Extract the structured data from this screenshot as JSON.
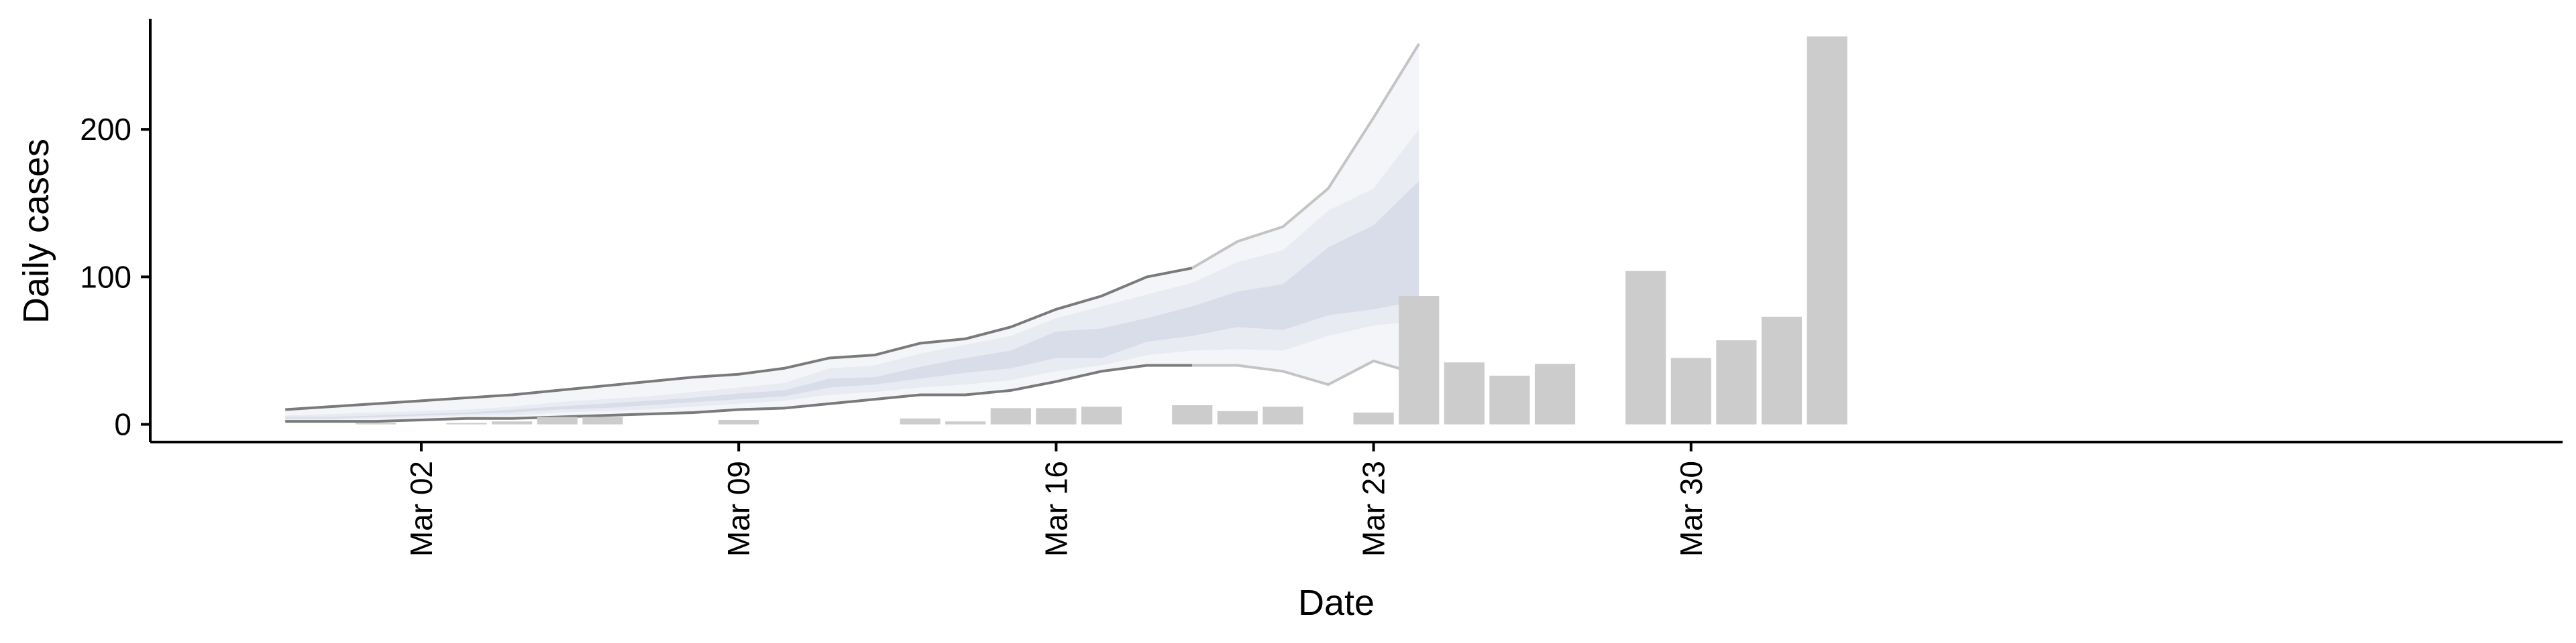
{
  "chart_data": {
    "type": "bar",
    "title": "",
    "xlabel": "Date",
    "ylabel": "Daily cases",
    "x_axis": {
      "type": "date",
      "range": [
        "2020-02-26",
        "2020-04-05"
      ],
      "ticks": [
        {
          "date": "2020-03-02",
          "label": "Mar 02"
        },
        {
          "date": "2020-03-09",
          "label": "Mar 09"
        },
        {
          "date": "2020-03-16",
          "label": "Mar 16"
        },
        {
          "date": "2020-03-23",
          "label": "Mar 23"
        },
        {
          "date": "2020-03-30",
          "label": "Mar 30"
        }
      ]
    },
    "y_axis": {
      "range": [
        -12,
        275
      ],
      "ticks": [
        0,
        100,
        200
      ]
    },
    "grid": false,
    "legend": "none",
    "colors": {
      "bars": "#cccccc",
      "band_outer": "#f4f5f8",
      "band_mid": "#e9ebf2",
      "band_inner": "#d9dce9",
      "band_line_dark": "#7a7a7a",
      "band_line_light": "#c4c4c4",
      "axis": "#000000"
    },
    "bars": [
      {
        "date": "2020-03-01",
        "value": 1
      },
      {
        "date": "2020-03-03",
        "value": 1
      },
      {
        "date": "2020-03-04",
        "value": 2
      },
      {
        "date": "2020-03-05",
        "value": 5
      },
      {
        "date": "2020-03-06",
        "value": 5
      },
      {
        "date": "2020-03-09",
        "value": 3
      },
      {
        "date": "2020-03-13",
        "value": 4
      },
      {
        "date": "2020-03-14",
        "value": 2
      },
      {
        "date": "2020-03-15",
        "value": 11
      },
      {
        "date": "2020-03-16",
        "value": 11
      },
      {
        "date": "2020-03-17",
        "value": 12
      },
      {
        "date": "2020-03-19",
        "value": 13
      },
      {
        "date": "2020-03-20",
        "value": 9
      },
      {
        "date": "2020-03-21",
        "value": 12
      },
      {
        "date": "2020-03-23",
        "value": 8
      },
      {
        "date": "2020-03-24",
        "value": 87
      },
      {
        "date": "2020-03-25",
        "value": 42
      },
      {
        "date": "2020-03-26",
        "value": 33
      },
      {
        "date": "2020-03-27",
        "value": 41
      },
      {
        "date": "2020-03-29",
        "value": 104
      },
      {
        "date": "2020-03-30",
        "value": 45
      },
      {
        "date": "2020-03-31",
        "value": 57
      },
      {
        "date": "2020-04-01",
        "value": 73
      },
      {
        "date": "2020-04-02",
        "value": 263
      }
    ],
    "band": {
      "dates": [
        "2020-02-28",
        "2020-02-29",
        "2020-03-01",
        "2020-03-02",
        "2020-03-03",
        "2020-03-04",
        "2020-03-05",
        "2020-03-06",
        "2020-03-07",
        "2020-03-08",
        "2020-03-09",
        "2020-03-10",
        "2020-03-11",
        "2020-03-12",
        "2020-03-13",
        "2020-03-14",
        "2020-03-15",
        "2020-03-16",
        "2020-03-17",
        "2020-03-18",
        "2020-03-19",
        "2020-03-20",
        "2020-03-21",
        "2020-03-22",
        "2020-03-23",
        "2020-03-24"
      ],
      "lower_90": [
        2,
        2,
        2,
        3,
        4,
        4,
        5,
        6,
        7,
        8,
        10,
        11,
        14,
        17,
        20,
        20,
        23,
        29,
        36,
        40,
        40,
        40,
        36,
        27,
        43,
        34
      ],
      "lower_50": [
        3,
        3,
        4,
        5,
        6,
        6,
        8,
        9,
        10,
        12,
        14,
        16,
        20,
        22,
        25,
        27,
        30,
        36,
        40,
        47,
        50,
        51,
        50,
        60,
        67,
        70
      ],
      "lower_20": [
        4,
        4,
        5,
        6,
        7,
        8,
        10,
        11,
        13,
        15,
        17,
        19,
        25,
        27,
        31,
        35,
        38,
        45,
        45,
        56,
        60,
        66,
        64,
        74,
        78,
        84
      ],
      "upper_20": [
        5,
        5,
        6,
        7,
        8,
        10,
        12,
        14,
        16,
        18,
        21,
        23,
        31,
        32,
        39,
        45,
        50,
        63,
        65,
        72,
        80,
        90,
        95,
        120,
        135,
        165
      ],
      "upper_50": [
        6,
        7,
        8,
        9,
        10,
        12,
        15,
        17,
        19,
        22,
        25,
        28,
        38,
        40,
        48,
        54,
        60,
        72,
        80,
        88,
        96,
        110,
        118,
        145,
        160,
        200
      ],
      "upper_90": [
        10,
        12,
        14,
        16,
        18,
        20,
        23,
        26,
        29,
        32,
        34,
        38,
        45,
        47,
        55,
        58,
        66,
        78,
        87,
        100,
        106,
        124,
        134,
        160,
        208,
        258
      ]
    }
  }
}
